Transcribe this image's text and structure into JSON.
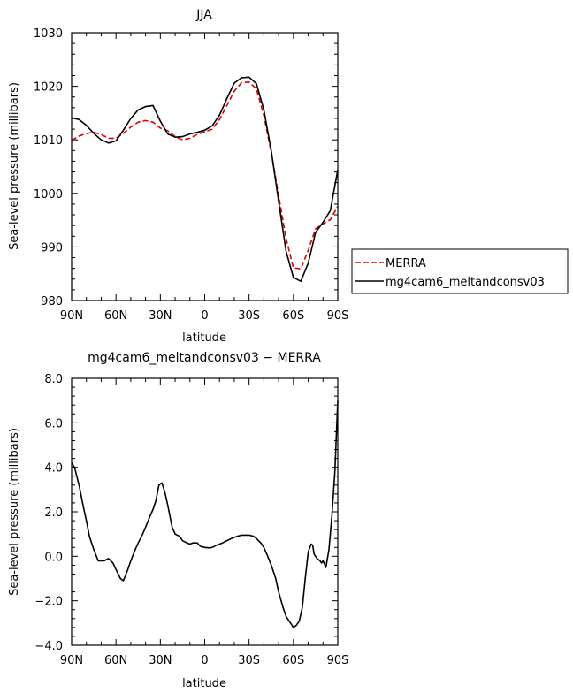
{
  "chart_data": [
    {
      "type": "line",
      "title": "JJA",
      "xlabel": "latitude",
      "ylabel": "Sea-level pressure (millibars)",
      "xlim": [
        90,
        -90
      ],
      "ylim": [
        980,
        1030
      ],
      "xticks": [
        90,
        60,
        30,
        0,
        -30,
        -60,
        -90
      ],
      "xtick_labels": [
        "90N",
        "60N",
        "30N",
        "0",
        "30S",
        "60S",
        "90S"
      ],
      "yticks": [
        980,
        990,
        1000,
        1010,
        1020,
        1030
      ],
      "ytick_labels": [
        "980",
        "990",
        "1000",
        "1010",
        "1020",
        "1030"
      ],
      "grid": false,
      "legend": "right",
      "series": [
        {
          "name": "MERRA",
          "color": "#dd0000",
          "dash": "dashed",
          "x": [
            90,
            85,
            80,
            75,
            70,
            65,
            60,
            55,
            50,
            45,
            40,
            35,
            30,
            25,
            20,
            15,
            10,
            5,
            0,
            -5,
            -10,
            -15,
            -20,
            -25,
            -30,
            -35,
            -40,
            -45,
            -50,
            -55,
            -60,
            -65,
            -70,
            -75,
            -80,
            -85,
            -90
          ],
          "y": [
            1009.9,
            1010.7,
            1011.2,
            1011.4,
            1011.0,
            1010.3,
            1010.3,
            1011.2,
            1012.4,
            1013.3,
            1013.6,
            1013.3,
            1012.2,
            1011.7,
            1010.6,
            1010.0,
            1010.3,
            1011.0,
            1011.5,
            1012.0,
            1013.8,
            1016.4,
            1019.1,
            1020.7,
            1020.8,
            1019.5,
            1014.5,
            1007.6,
            999.6,
            991.6,
            986.1,
            985.9,
            989.4,
            993.4,
            994.3,
            995.1,
            997.6
          ]
        },
        {
          "name": "mg4cam6_meltandconsv03",
          "color": "#000000",
          "dash": "solid",
          "x": [
            90,
            85,
            80,
            75,
            70,
            65,
            60,
            55,
            50,
            45,
            40,
            35,
            30,
            25,
            20,
            15,
            10,
            5,
            0,
            -5,
            -10,
            -15,
            -20,
            -25,
            -30,
            -35,
            -40,
            -45,
            -50,
            -55,
            -60,
            -65,
            -70,
            -75,
            -80,
            -85,
            -90
          ],
          "y": [
            1014.1,
            1013.8,
            1012.7,
            1011.2,
            1010.0,
            1009.4,
            1009.8,
            1011.8,
            1014.0,
            1015.6,
            1016.2,
            1016.4,
            1013.5,
            1011.1,
            1010.5,
            1010.6,
            1011.1,
            1011.4,
            1011.8,
            1012.6,
            1014.6,
            1017.7,
            1020.6,
            1021.6,
            1021.7,
            1020.5,
            1015.6,
            1007.9,
            998.5,
            989.2,
            984.3,
            983.6,
            987.0,
            992.7,
            994.6,
            996.8,
            1004.4
          ]
        }
      ]
    },
    {
      "type": "line",
      "title": "mg4cam6_meltandconsv03 − MERRA",
      "xlabel": "latitude",
      "ylabel": "Sea-level pressure (millibars)",
      "xlim": [
        90,
        -90
      ],
      "ylim": [
        -4,
        8
      ],
      "xticks": [
        90,
        60,
        30,
        0,
        -30,
        -60,
        -90
      ],
      "xtick_labels": [
        "90N",
        "60N",
        "30N",
        "0",
        "30S",
        "60S",
        "90S"
      ],
      "yticks": [
        -4,
        -2,
        0,
        2,
        4,
        6,
        8
      ],
      "ytick_labels": [
        "−4.0",
        "−2.0",
        "0.0",
        "2.0",
        "4.0",
        "6.0",
        "8.0"
      ],
      "grid": false,
      "series": [
        {
          "color": "#000000",
          "dash": "solid",
          "x": [
            90,
            88,
            85,
            82,
            80,
            78,
            75,
            72,
            70,
            68,
            65,
            62,
            60,
            57,
            55,
            52,
            50,
            47,
            45,
            42,
            40,
            37,
            35,
            33,
            31,
            29,
            27,
            25,
            22,
            20,
            17,
            15,
            12,
            10,
            8,
            5,
            3,
            0,
            -3,
            -5,
            -8,
            -10,
            -12,
            -15,
            -18,
            -20,
            -22,
            -25,
            -28,
            -30,
            -33,
            -35,
            -38,
            -40,
            -42,
            -45,
            -48,
            -50,
            -53,
            -55,
            -58,
            -60,
            -62,
            -64,
            -66,
            -68,
            -70,
            -72,
            -73,
            -74,
            -76,
            -78,
            -79,
            -80,
            -82,
            -84,
            -86,
            -88,
            -90
          ],
          "y": [
            4.2,
            4.0,
            3.2,
            2.2,
            1.6,
            0.9,
            0.3,
            -0.2,
            -0.2,
            -0.2,
            -0.1,
            -0.3,
            -0.6,
            -1.0,
            -1.1,
            -0.6,
            -0.2,
            0.3,
            0.6,
            1.0,
            1.3,
            1.8,
            2.1,
            2.5,
            3.2,
            3.3,
            2.9,
            2.3,
            1.3,
            1.0,
            0.9,
            0.7,
            0.6,
            0.55,
            0.6,
            0.6,
            0.45,
            0.4,
            0.38,
            0.4,
            0.5,
            0.55,
            0.6,
            0.7,
            0.8,
            0.85,
            0.9,
            0.95,
            0.95,
            0.95,
            0.9,
            0.8,
            0.6,
            0.4,
            0.1,
            -0.4,
            -1.0,
            -1.6,
            -2.3,
            -2.7,
            -3.0,
            -3.2,
            -3.1,
            -2.9,
            -2.3,
            -1.0,
            0.2,
            0.55,
            0.5,
            0.1,
            -0.1,
            -0.2,
            -0.3,
            -0.2,
            -0.5,
            0.3,
            1.8,
            3.8,
            7.0
          ]
        }
      ]
    }
  ]
}
